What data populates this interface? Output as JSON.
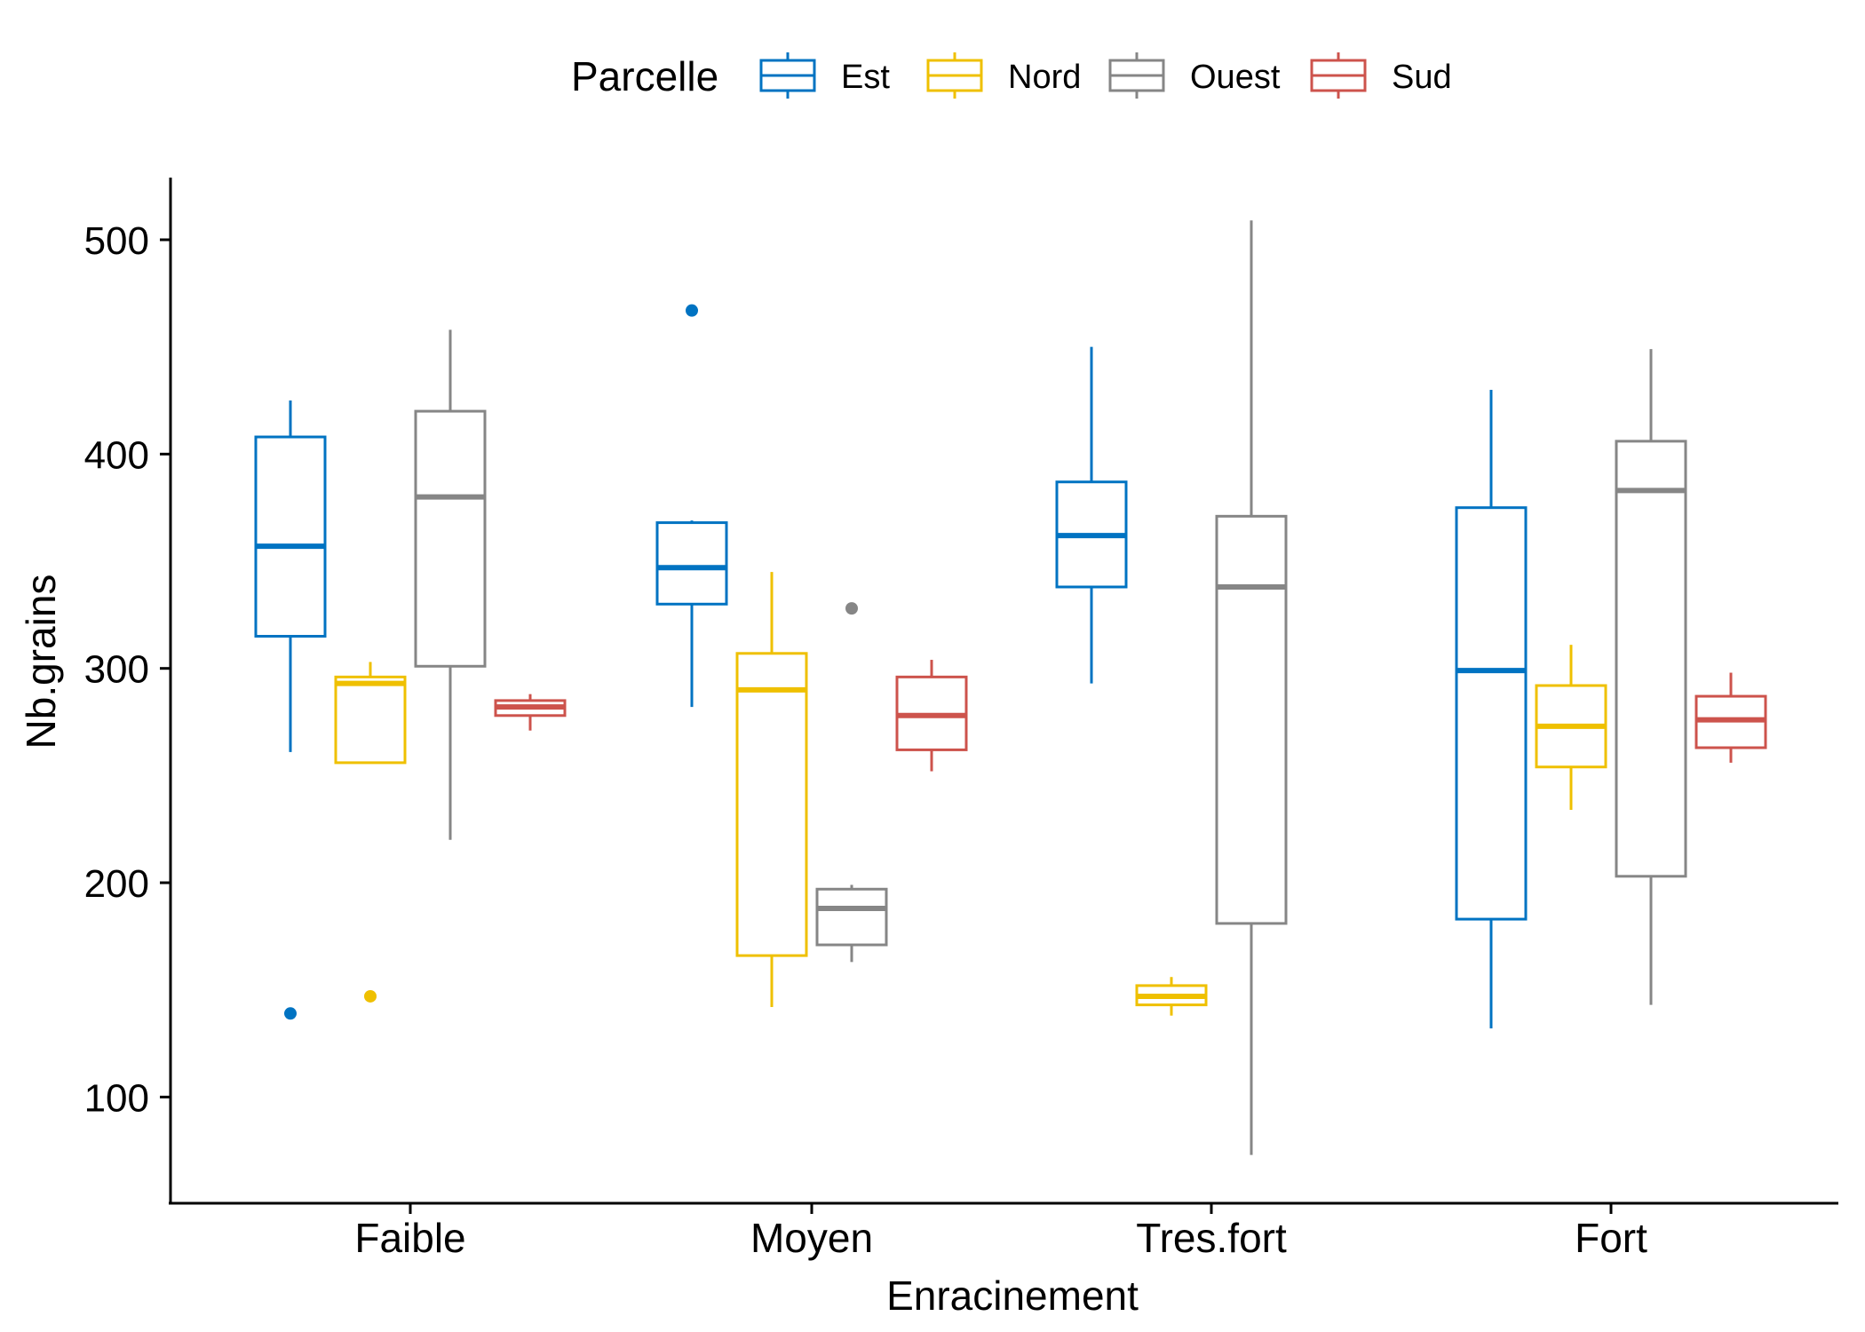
{
  "chart_data": {
    "type": "boxplot",
    "xlabel": "Enracinement",
    "ylabel": "Nb.grains",
    "categories": [
      "Faible",
      "Moyen",
      "Tres.fort",
      "Fort"
    ],
    "yticks": [
      100,
      200,
      300,
      400,
      500
    ],
    "ylim": [
      50,
      530
    ],
    "legend": {
      "title": "Parcelle",
      "position": "top"
    },
    "series": [
      {
        "name": "Est",
        "color": "#0073C2",
        "boxes": [
          {
            "min": 261,
            "q1": 315,
            "median": 357,
            "q3": 408,
            "max": 425,
            "outliers": [
              139
            ]
          },
          {
            "min": 282,
            "q1": 330,
            "median": 347,
            "q3": 368,
            "max": 369,
            "outliers": [
              467
            ]
          },
          {
            "min": 293,
            "q1": 338,
            "median": 362,
            "q3": 387,
            "max": 450,
            "outliers": []
          },
          {
            "min": 132,
            "q1": 183,
            "median": 299,
            "q3": 375,
            "max": 430,
            "outliers": []
          }
        ]
      },
      {
        "name": "Nord",
        "color": "#EFC000",
        "boxes": [
          {
            "min": 256,
            "q1": 256,
            "median": 293,
            "q3": 296,
            "max": 303,
            "outliers": [
              147
            ]
          },
          {
            "min": 142,
            "q1": 166,
            "median": 290,
            "q3": 307,
            "max": 345,
            "outliers": []
          },
          {
            "min": 138,
            "q1": 143,
            "median": 147,
            "q3": 152,
            "max": 156,
            "outliers": []
          },
          {
            "min": 234,
            "q1": 254,
            "median": 273,
            "q3": 292,
            "max": 311,
            "outliers": []
          }
        ]
      },
      {
        "name": "Ouest",
        "color": "#868686",
        "boxes": [
          {
            "min": 220,
            "q1": 301,
            "median": 380,
            "q3": 420,
            "max": 458,
            "outliers": []
          },
          {
            "min": 163,
            "q1": 171,
            "median": 188,
            "q3": 197,
            "max": 199,
            "outliers": [
              328
            ]
          },
          {
            "min": 73,
            "q1": 181,
            "median": 338,
            "q3": 371,
            "max": 509,
            "outliers": []
          },
          {
            "min": 143,
            "q1": 203,
            "median": 383,
            "q3": 406,
            "max": 449,
            "outliers": []
          }
        ]
      },
      {
        "name": "Sud",
        "color": "#CD534C",
        "boxes": [
          {
            "min": 271,
            "q1": 278,
            "median": 282,
            "q3": 285,
            "max": 288,
            "outliers": []
          },
          {
            "min": 252,
            "q1": 262,
            "median": 278,
            "q3": 296,
            "max": 304,
            "outliers": []
          },
          null,
          {
            "min": 256,
            "q1": 263,
            "median": 276,
            "q3": 287,
            "max": 298,
            "outliers": []
          }
        ]
      }
    ]
  }
}
